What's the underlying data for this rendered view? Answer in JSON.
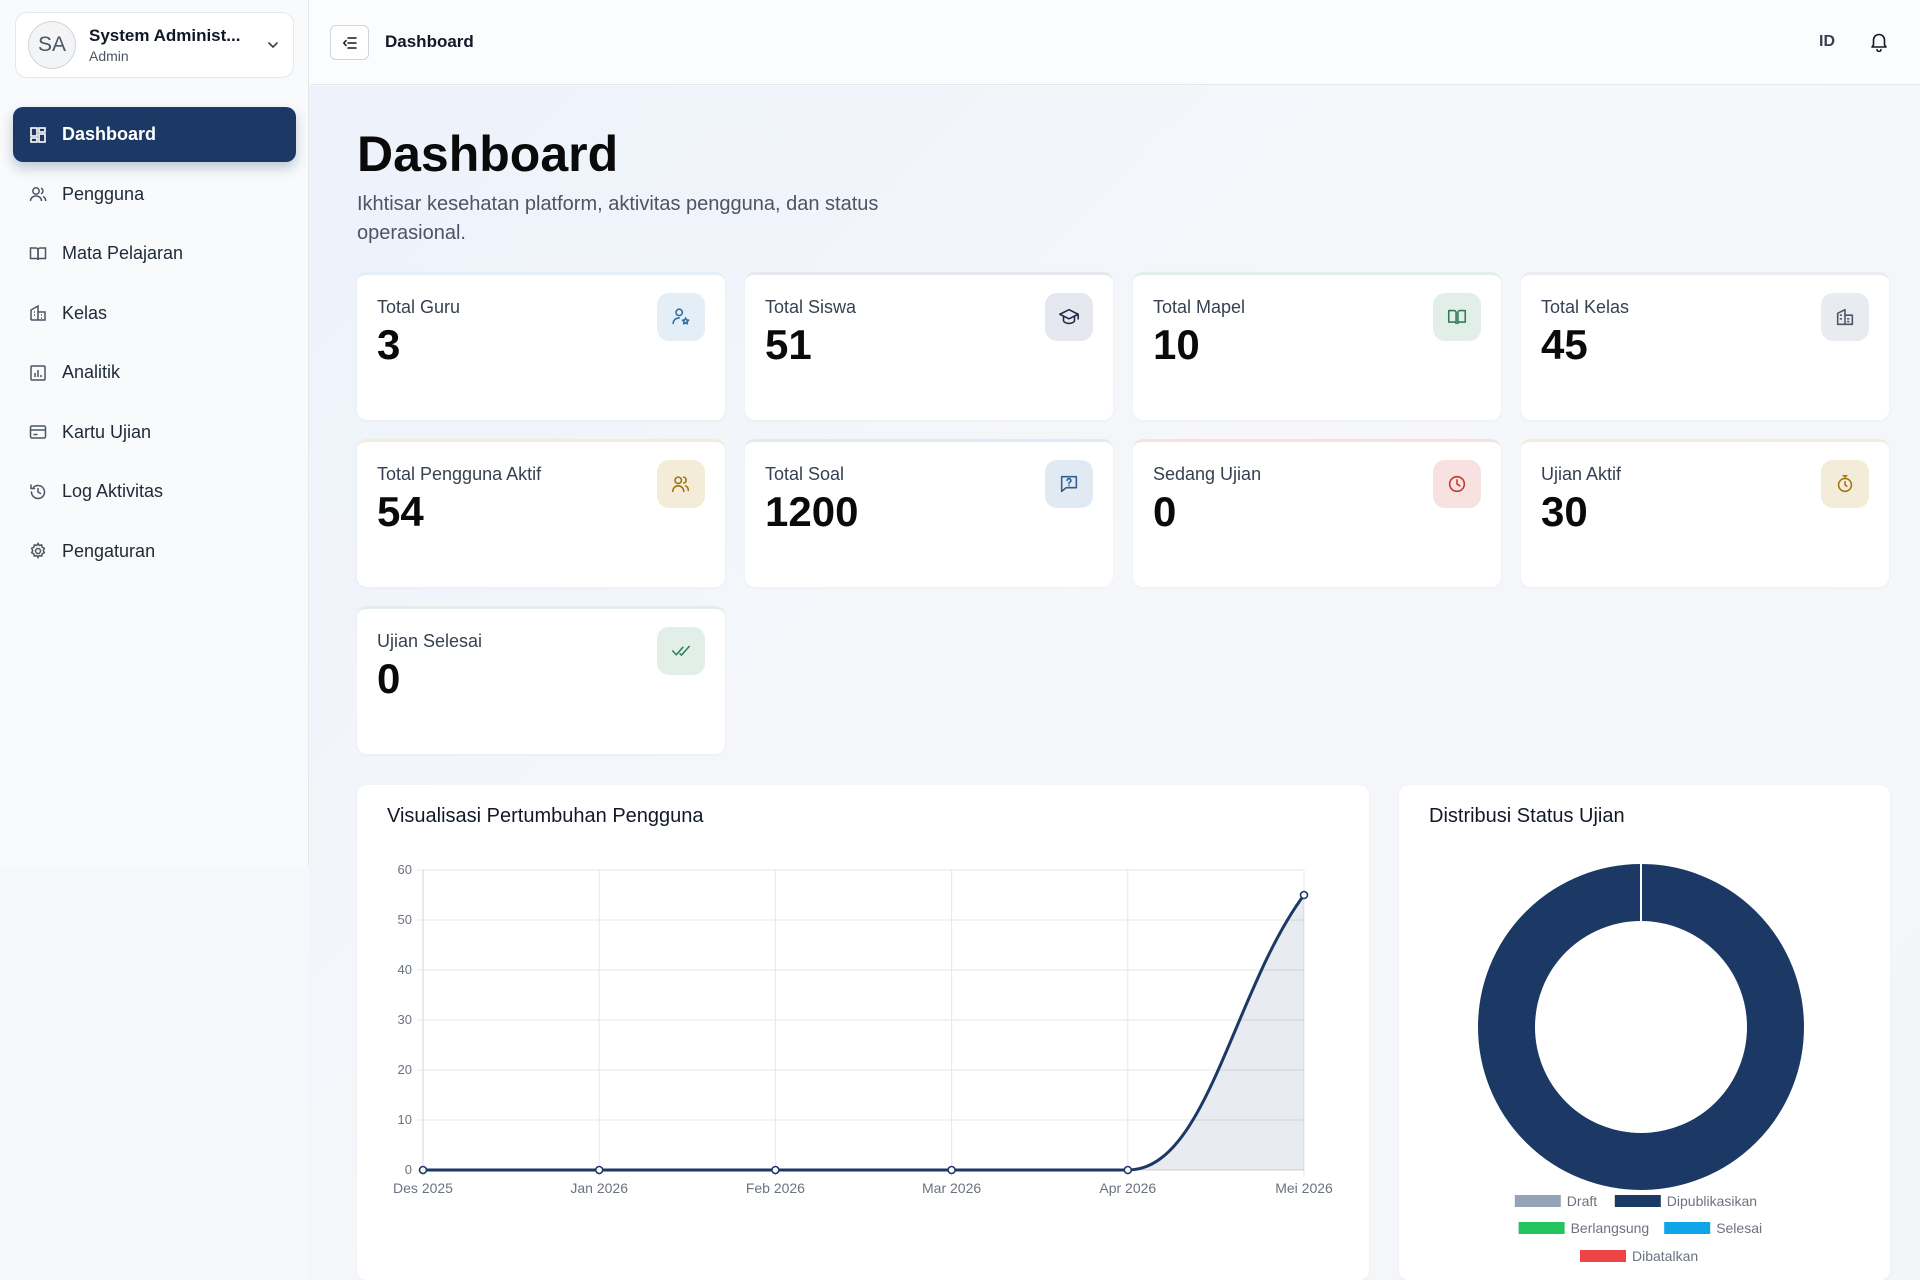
{
  "user": {
    "initials": "SA",
    "name": "System Administ...",
    "role": "Admin"
  },
  "nav": [
    {
      "label": "Dashboard",
      "icon": "dashboard-icon",
      "active": true
    },
    {
      "label": "Pengguna",
      "icon": "users-icon"
    },
    {
      "label": "Mata Pelajaran",
      "icon": "book-icon"
    },
    {
      "label": "Kelas",
      "icon": "building-icon"
    },
    {
      "label": "Analitik",
      "icon": "bar-chart-icon"
    },
    {
      "label": "Kartu Ujian",
      "icon": "card-icon"
    },
    {
      "label": "Log Aktivitas",
      "icon": "history-icon"
    },
    {
      "label": "Pengaturan",
      "icon": "gear-icon"
    }
  ],
  "header": {
    "title": "Dashboard",
    "lang": "ID"
  },
  "page": {
    "title": "Dashboard",
    "subtitle": "Ikhtisar kesehatan platform, aktivitas pengguna, dan status operasional."
  },
  "stats": [
    {
      "label": "Total Guru",
      "value": "3",
      "icon": "teacher-icon",
      "accent": "#2f6f9f",
      "accent_bg": "#e3eef6"
    },
    {
      "label": "Total Siswa",
      "value": "51",
      "icon": "graduation-cap-icon",
      "accent": "#1f2a44",
      "accent_bg": "#e5e8ee"
    },
    {
      "label": "Total Mapel",
      "value": "10",
      "icon": "book-open-icon",
      "accent": "#2f7d5b",
      "accent_bg": "#e2efe8"
    },
    {
      "label": "Total Kelas",
      "value": "45",
      "icon": "building-icon",
      "accent": "#4b5563",
      "accent_bg": "#e8ebef"
    },
    {
      "label": "Total Pengguna Aktif",
      "value": "54",
      "icon": "users-icon",
      "accent": "#a07412",
      "accent_bg": "#f3ecd9"
    },
    {
      "label": "Total Soal",
      "value": "1200",
      "icon": "question-icon",
      "accent": "#2f5f8f",
      "accent_bg": "#e1eaf3"
    },
    {
      "label": "Sedang Ujian",
      "value": "0",
      "icon": "clock-icon",
      "accent": "#c0392b",
      "accent_bg": "#f8e1e1"
    },
    {
      "label": "Ujian Aktif",
      "value": "30",
      "icon": "timer-icon",
      "accent": "#a07412",
      "accent_bg": "#f3ecd9"
    },
    {
      "label": "Ujian Selesai",
      "value": "0",
      "icon": "double-check-icon",
      "accent": "#2f7d5b",
      "accent_bg": "#e2efe8"
    }
  ],
  "charts": {
    "growth_title": "Visualisasi Pertumbuhan Pengguna",
    "status_title": "Distribusi Status Ujian"
  },
  "chart_data": [
    {
      "type": "area",
      "title": "Visualisasi Pertumbuhan Pengguna",
      "categories": [
        "Des 2025",
        "Jan 2026",
        "Feb 2026",
        "Mar 2026",
        "Apr 2026",
        "Mei 2026"
      ],
      "values": [
        0,
        0,
        0,
        0,
        0,
        55
      ],
      "ylim": [
        0,
        60
      ],
      "yticks": [
        0,
        10,
        20,
        30,
        40,
        50,
        60
      ],
      "grid": true,
      "color": "#1c3966"
    },
    {
      "type": "pie",
      "title": "Distribusi Status Ujian",
      "donut": true,
      "legend_position": "bottom",
      "slices": [
        {
          "label": "Draft",
          "value": 0,
          "color": "#94a3b8"
        },
        {
          "label": "Dipublikasikan",
          "value": 30,
          "color": "#1c3966"
        },
        {
          "label": "Berlangsung",
          "value": 0,
          "color": "#22c55e"
        },
        {
          "label": "Selesai",
          "value": 0,
          "color": "#0ea5e9"
        },
        {
          "label": "Dibatalkan",
          "value": 0,
          "color": "#ef4444"
        }
      ]
    }
  ]
}
